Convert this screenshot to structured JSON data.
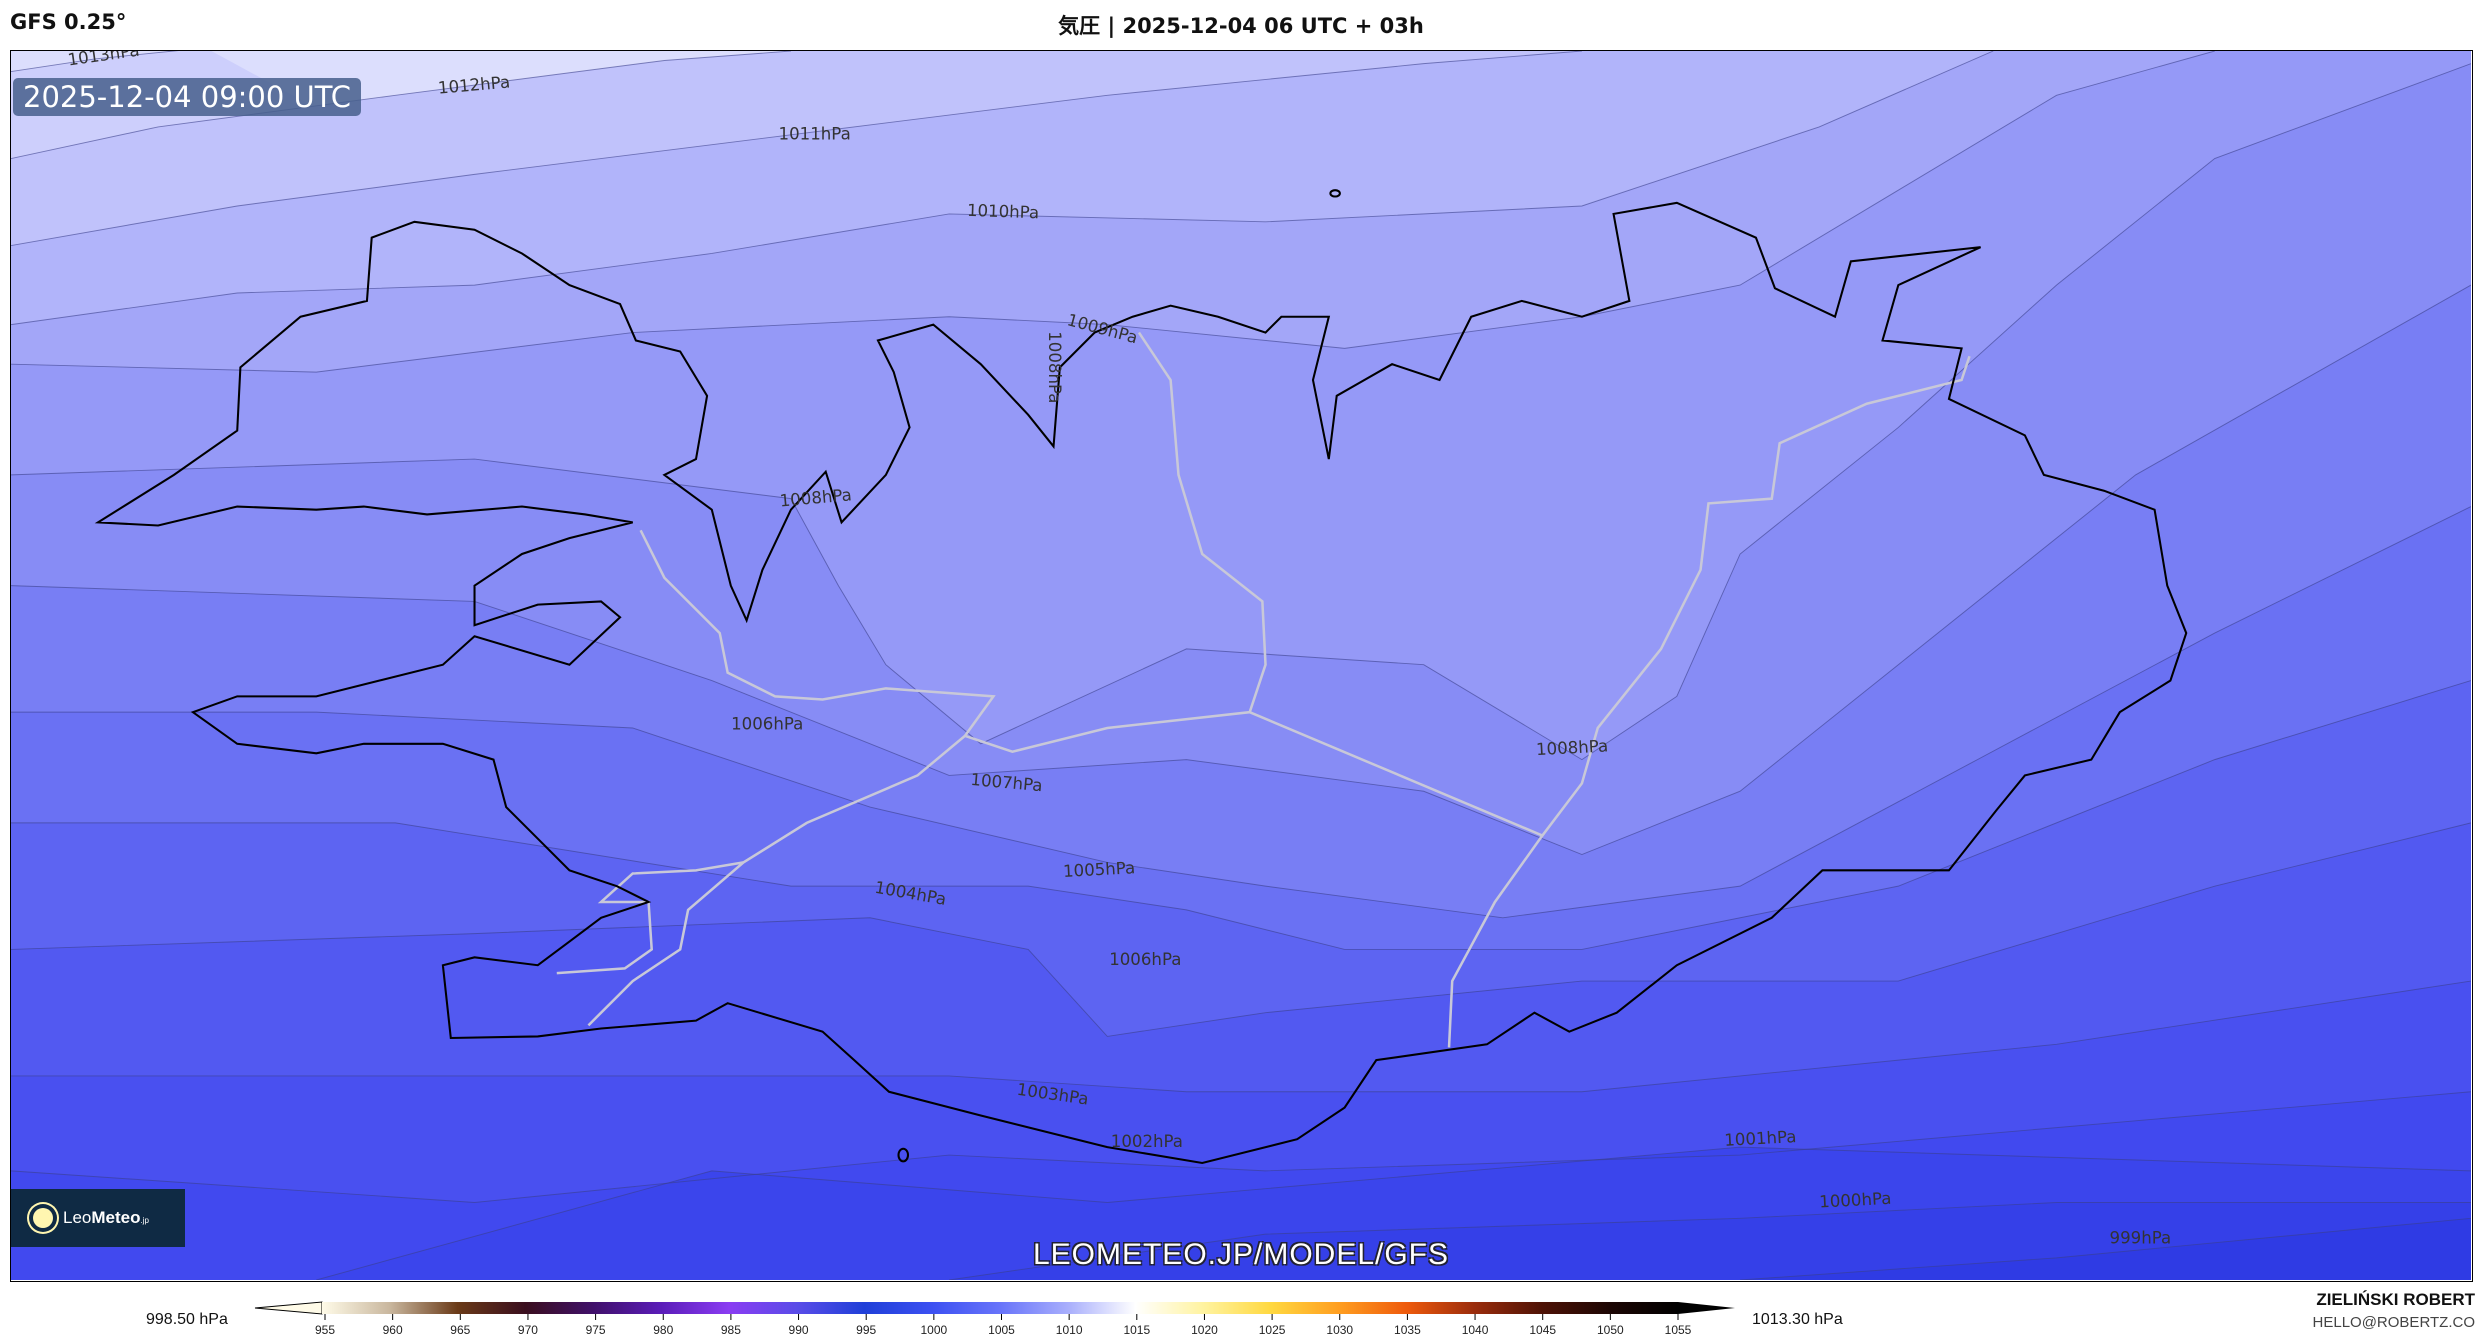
{
  "header": {
    "model": "GFS 0.25°",
    "title": "気圧 | 2025-12-04 06 UTC + 03h"
  },
  "map": {
    "valid_time": "2025-12-04 09:00 UTC",
    "contour_labels": [
      "1013hPa",
      "1012hPa",
      "1011hPa",
      "1010hPa",
      "1009hPa",
      "1008hPa",
      "1008hPa",
      "1006hPa",
      "1007hPa",
      "1008hPa",
      "1005hPa",
      "1004hPa",
      "1006hPa",
      "1003hPa",
      "1002hPa",
      "1001hPa",
      "1000hPa",
      "999hPa"
    ],
    "watermark": "LEOMETEO.JP/MODEL/GFS",
    "logo_text": "LeoMeteo.jp"
  },
  "colorbar": {
    "min_label": "998.50 hPa",
    "max_label": "1013.30 hPa",
    "ticks": [
      "955",
      "960",
      "965",
      "970",
      "975",
      "980",
      "985",
      "990",
      "995",
      "1000",
      "1005",
      "1010",
      "1015",
      "1020",
      "1025",
      "1030",
      "1035",
      "1040",
      "1045",
      "1050",
      "1055"
    ],
    "colors": [
      "#fffbe8",
      "#c9b79e",
      "#6a3a18",
      "#3a0e1e",
      "#40106a",
      "#5a1cb8",
      "#8a3cf2",
      "#5a4ce8",
      "#1f3fd8",
      "#3c50f2",
      "#6874fa",
      "#a8aefc",
      "#ffffff",
      "#fff3a0",
      "#ffd840",
      "#ff9e20",
      "#ee5a0c",
      "#9a2c0c",
      "#4e1206",
      "#1c0604",
      "#000000"
    ]
  },
  "credits": {
    "author": "ZIELIŃSKI ROBERT",
    "email": "HELLO@ROBERTZ.CO"
  }
}
